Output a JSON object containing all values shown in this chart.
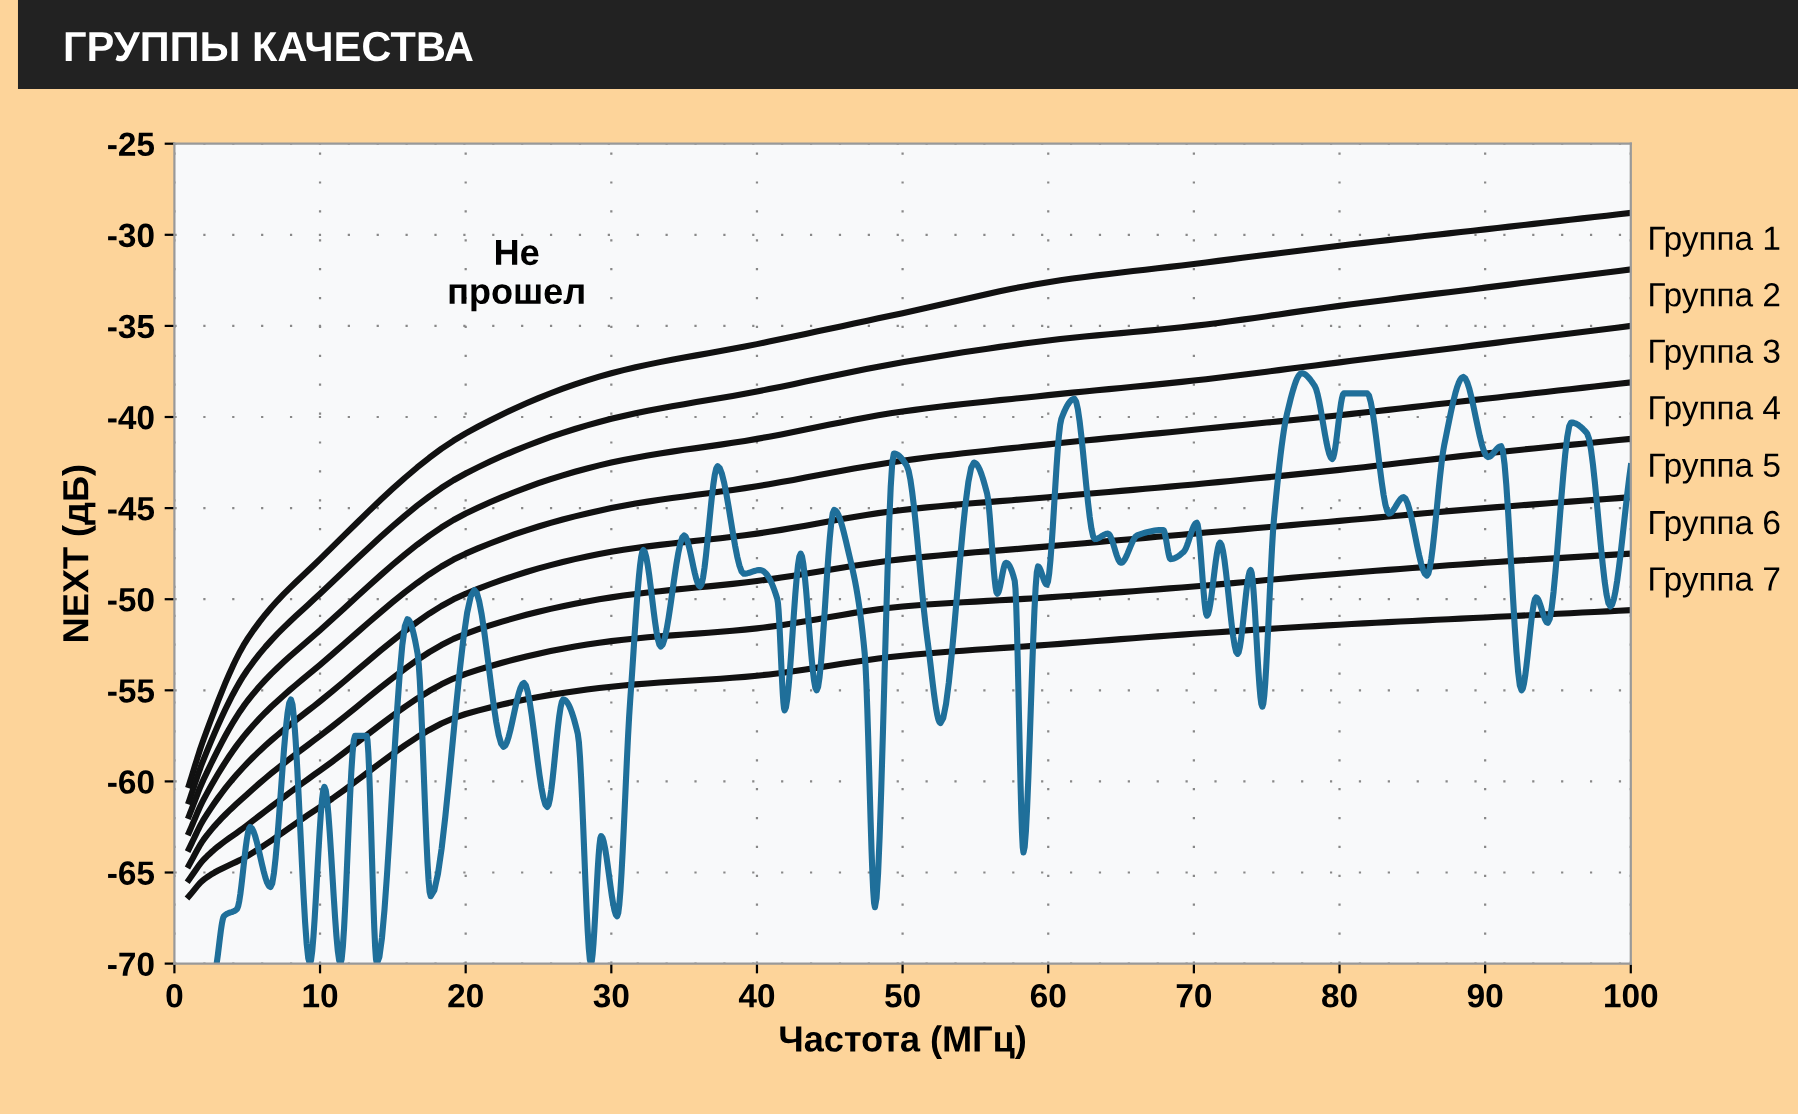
{
  "chart_data": {
    "type": "line",
    "title": "ГРУППЫ КАЧЕСТВА",
    "xlabel": "Частота (МГц)",
    "ylabel": "NEXT (дБ)",
    "xlim": [
      0,
      100
    ],
    "xticks": [
      0,
      10,
      20,
      30,
      40,
      50,
      60,
      70,
      80,
      90,
      100
    ],
    "ylim": [
      -70,
      -25
    ],
    "yticks": [
      -25,
      -30,
      -35,
      -40,
      -45,
      -50,
      -55,
      -60,
      -65,
      -70
    ],
    "grid": true,
    "marker": "none",
    "line_style": "solid",
    "annotations": [
      "Не\nпрошел",
      "Группа 1",
      "Группа 2",
      "Группа 3",
      "Группа 4",
      "Группа 5",
      "Группа 6",
      "Группа 7"
    ],
    "series": [
      {
        "color": "#111111",
        "x": [
          1,
          2,
          5,
          10,
          20,
          30,
          40,
          50,
          60,
          70,
          80,
          90,
          100
        ],
        "values": [
          -60.2,
          -57.7,
          -52.2,
          -47.8,
          -40.9,
          -37.6,
          -36.0,
          -34.3,
          -32.6,
          -31.6,
          -30.6,
          -29.7,
          -28.8
        ]
      },
      {
        "color": "#111111",
        "x": [
          1,
          2,
          5,
          10,
          20,
          30,
          40,
          50,
          60,
          70,
          80,
          90,
          100
        ],
        "values": [
          -61.1,
          -58.8,
          -53.9,
          -49.7,
          -43.1,
          -40.1,
          -38.6,
          -37.0,
          -35.8,
          -35.0,
          -33.9,
          -32.9,
          -31.9
        ]
      },
      {
        "color": "#111111",
        "x": [
          1,
          2,
          5,
          10,
          20,
          30,
          40,
          50,
          60,
          70,
          80,
          90,
          100
        ],
        "values": [
          -61.9,
          -59.9,
          -55.6,
          -51.7,
          -45.3,
          -42.5,
          -41.2,
          -39.7,
          -38.8,
          -38.0,
          -37.0,
          -36.0,
          -35.0
        ]
      },
      {
        "color": "#111111",
        "x": [
          1,
          2,
          5,
          10,
          20,
          30,
          40,
          50,
          60,
          70,
          80,
          90,
          100
        ],
        "values": [
          -62.8,
          -61.0,
          -57.3,
          -53.6,
          -47.5,
          -45.0,
          -43.8,
          -42.4,
          -41.5,
          -40.7,
          -39.9,
          -39.0,
          -38.1
        ]
      },
      {
        "color": "#111111",
        "x": [
          1,
          2,
          5,
          10,
          20,
          30,
          40,
          50,
          60,
          70,
          80,
          90,
          100
        ],
        "values": [
          -63.7,
          -62.1,
          -59.0,
          -55.6,
          -49.7,
          -47.4,
          -46.4,
          -45.1,
          -44.4,
          -43.7,
          -42.9,
          -42.0,
          -41.2
        ]
      },
      {
        "color": "#111111",
        "x": [
          1,
          2,
          5,
          10,
          20,
          30,
          40,
          50,
          60,
          70,
          80,
          90,
          100
        ],
        "values": [
          -64.6,
          -63.2,
          -60.7,
          -57.5,
          -51.9,
          -49.9,
          -49.0,
          -47.8,
          -47.1,
          -46.4,
          -45.7,
          -45.0,
          -44.4
        ]
      },
      {
        "color": "#111111",
        "x": [
          1,
          2,
          5,
          10,
          20,
          30,
          40,
          50,
          60,
          70,
          80,
          90,
          100
        ],
        "values": [
          -65.4,
          -64.3,
          -62.4,
          -59.4,
          -54.1,
          -52.3,
          -51.6,
          -50.4,
          -49.9,
          -49.3,
          -48.6,
          -48.0,
          -47.5
        ]
      },
      {
        "color": "#111111",
        "x": [
          1,
          2,
          5,
          10,
          20,
          30,
          40,
          50,
          60,
          70,
          80,
          90,
          100
        ],
        "values": [
          -66.3,
          -65.4,
          -64.1,
          -61.4,
          -56.3,
          -54.8,
          -54.2,
          -53.1,
          -52.5,
          -51.9,
          -51.4,
          -51.0,
          -50.6
        ]
      },
      {
        "color": "#1f6f9a",
        "x": [
          2.9,
          3.4,
          4.3,
          5.2,
          6.6,
          8.0,
          9.3,
          10.3,
          11.4,
          12.4,
          13.2,
          13.9,
          16.0,
          16.7,
          17.6,
          20.6,
          22.6,
          24.0,
          25.6,
          26.7,
          27.7,
          28.6,
          29.3,
          30.4,
          31.3,
          32.2,
          33.4,
          35.0,
          36.1,
          37.3,
          39.1,
          40.2,
          41.4,
          41.9,
          43.0,
          44.1,
          45.3,
          46.4,
          47.4,
          48.1,
          49.4,
          50.3,
          51.7,
          52.6,
          54.9,
          55.8,
          56.5,
          57.1,
          57.7,
          58.3,
          59.3,
          59.9,
          60.9,
          61.8,
          63.2,
          64.1,
          65.0,
          66.1,
          67.9,
          68.4,
          69.3,
          70.2,
          70.9,
          71.8,
          73.0,
          73.9,
          74.7,
          75.5,
          76.4,
          77.4,
          78.3,
          79.5,
          80.3,
          81.9,
          83.4,
          84.4,
          86.0,
          87.2,
          88.5,
          90.2,
          91.1,
          92.5,
          93.5,
          94.3,
          95.9,
          97.0,
          98.6,
          100.0
        ],
        "values": [
          -70,
          -67.4,
          -67.0,
          -62.5,
          -65.8,
          -55.5,
          -70,
          -60.3,
          -70,
          -57.5,
          -57.5,
          -70,
          -51.1,
          -53.0,
          -66.3,
          -49.5,
          -58.1,
          -54.6,
          -61.4,
          -55.5,
          -57.4,
          -70,
          -63.0,
          -67.4,
          -55.5,
          -47.3,
          -52.6,
          -46.5,
          -49.3,
          -42.7,
          -48.6,
          -48.4,
          -50.0,
          -56.1,
          -47.5,
          -55.0,
          -45.1,
          -47.8,
          -53.0,
          -66.9,
          -42.0,
          -42.7,
          -52.2,
          -56.8,
          -42.5,
          -44.2,
          -49.7,
          -48.0,
          -49.0,
          -63.9,
          -48.2,
          -49.2,
          -40.1,
          -39.0,
          -46.7,
          -46.4,
          -48.0,
          -46.5,
          -46.2,
          -47.8,
          -47.4,
          -45.8,
          -50.9,
          -46.9,
          -53.0,
          -48.4,
          -55.9,
          -45.6,
          -39.8,
          -37.6,
          -38.3,
          -42.3,
          -38.7,
          -38.7,
          -45.3,
          -44.4,
          -48.7,
          -41.5,
          -37.8,
          -42.2,
          -41.6,
          -55.0,
          -49.9,
          -51.3,
          -40.3,
          -40.9,
          -50.4,
          -42.7
        ]
      }
    ]
  }
}
